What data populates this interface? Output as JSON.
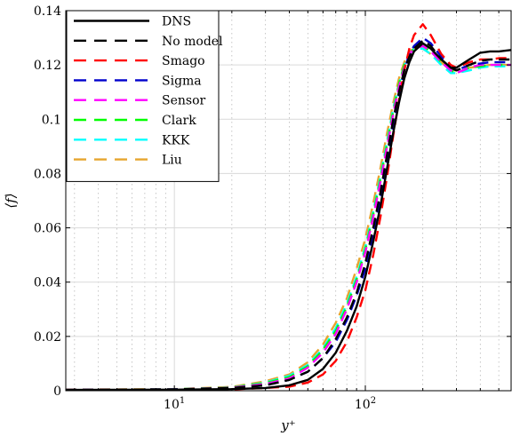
{
  "chart_data": {
    "type": "line",
    "title": "",
    "xlabel": "y⁺",
    "ylabel": "⟨f⟩",
    "xscale": "log",
    "xlim": [
      2.7,
      580
    ],
    "ylim": [
      0,
      0.14
    ],
    "grid": "log-major-and-minor",
    "legend_position": "top-left",
    "x_tick_labels": [
      {
        "value": 10,
        "base": "10",
        "exp": "1"
      },
      {
        "value": 100,
        "base": "10",
        "exp": "2"
      }
    ],
    "y_ticks": [
      0,
      0.02,
      0.04,
      0.06,
      0.08,
      0.1,
      0.12,
      0.14
    ],
    "y_tick_labels": [
      "0",
      "0.02",
      "0.04",
      "0.06",
      "0.08",
      "0.1",
      "0.12",
      "0.14"
    ],
    "series": [
      {
        "name": "DNS",
        "color": "#000000",
        "dash": "solid",
        "x": [
          2.7,
          10,
          20,
          30,
          40,
          50,
          60,
          70,
          80,
          90,
          100,
          110,
          120,
          130,
          140,
          150,
          160,
          170,
          180,
          200,
          220,
          250,
          280,
          300,
          350,
          400,
          450,
          500,
          580
        ],
        "y": [
          0.0003,
          0.0004,
          0.0006,
          0.001,
          0.002,
          0.004,
          0.008,
          0.014,
          0.022,
          0.031,
          0.042,
          0.055,
          0.068,
          0.082,
          0.095,
          0.106,
          0.115,
          0.121,
          0.125,
          0.128,
          0.126,
          0.122,
          0.119,
          0.119,
          0.122,
          0.1245,
          0.125,
          0.125,
          0.1255
        ]
      },
      {
        "name": "No model",
        "color": "#000000",
        "dash": "dashed",
        "x": [
          2.7,
          10,
          20,
          30,
          40,
          50,
          60,
          70,
          80,
          90,
          100,
          110,
          120,
          130,
          140,
          150,
          160,
          170,
          180,
          200,
          220,
          250,
          280,
          300,
          350,
          400,
          450,
          500,
          580
        ],
        "y": [
          0.0003,
          0.0005,
          0.001,
          0.002,
          0.004,
          0.007,
          0.012,
          0.019,
          0.027,
          0.036,
          0.047,
          0.06,
          0.073,
          0.087,
          0.1,
          0.11,
          0.118,
          0.123,
          0.126,
          0.129,
          0.127,
          0.122,
          0.119,
          0.118,
          0.12,
          0.1215,
          0.122,
          0.122,
          0.122
        ]
      },
      {
        "name": "Smago",
        "color": "#ff0000",
        "dash": "dashed",
        "x": [
          2.7,
          10,
          20,
          30,
          40,
          50,
          60,
          70,
          80,
          90,
          100,
          110,
          120,
          130,
          140,
          150,
          160,
          170,
          180,
          200,
          220,
          250,
          280,
          300,
          350,
          400,
          450,
          500,
          580
        ],
        "y": [
          0.0003,
          0.0004,
          0.0005,
          0.001,
          0.0015,
          0.003,
          0.006,
          0.011,
          0.018,
          0.027,
          0.037,
          0.05,
          0.064,
          0.079,
          0.094,
          0.107,
          0.118,
          0.126,
          0.131,
          0.135,
          0.131,
          0.124,
          0.12,
          0.119,
          0.121,
          0.122,
          0.122,
          0.1225,
          0.1225
        ]
      },
      {
        "name": "Sigma",
        "color": "#0000cc",
        "dash": "dashed",
        "x": [
          2.7,
          10,
          20,
          30,
          40,
          50,
          60,
          70,
          80,
          90,
          100,
          110,
          120,
          130,
          140,
          150,
          160,
          170,
          180,
          200,
          220,
          250,
          280,
          300,
          350,
          400,
          450,
          500,
          580
        ],
        "y": [
          0.0003,
          0.0005,
          0.0009,
          0.002,
          0.004,
          0.007,
          0.012,
          0.018,
          0.026,
          0.035,
          0.045,
          0.058,
          0.071,
          0.085,
          0.098,
          0.109,
          0.118,
          0.124,
          0.127,
          0.13,
          0.128,
          0.123,
          0.119,
          0.118,
          0.12,
          0.1205,
          0.121,
          0.121,
          0.121
        ]
      },
      {
        "name": "Sensor",
        "color": "#ff00ff",
        "dash": "dashed",
        "x": [
          2.7,
          10,
          20,
          30,
          40,
          50,
          60,
          70,
          80,
          90,
          100,
          110,
          120,
          130,
          140,
          150,
          160,
          170,
          180,
          200,
          220,
          250,
          280,
          300,
          350,
          400,
          450,
          500,
          580
        ],
        "y": [
          0.0003,
          0.0005,
          0.0011,
          0.0025,
          0.0045,
          0.0085,
          0.014,
          0.021,
          0.03,
          0.04,
          0.051,
          0.064,
          0.077,
          0.09,
          0.102,
          0.112,
          0.119,
          0.124,
          0.126,
          0.127,
          0.125,
          0.121,
          0.118,
          0.117,
          0.119,
          0.12,
          0.12,
          0.12,
          0.12
        ]
      },
      {
        "name": "Clark",
        "color": "#00ff00",
        "dash": "dashed",
        "x": [
          2.7,
          10,
          20,
          30,
          40,
          50,
          60,
          70,
          80,
          90,
          100,
          110,
          120,
          130,
          140,
          150,
          160,
          170,
          180,
          200,
          220,
          250,
          280,
          300,
          350,
          400,
          450,
          500,
          580
        ],
        "y": [
          0.0003,
          0.0005,
          0.0012,
          0.0028,
          0.005,
          0.009,
          0.015,
          0.022,
          0.031,
          0.041,
          0.052,
          0.065,
          0.078,
          0.091,
          0.103,
          0.113,
          0.12,
          0.124,
          0.126,
          0.127,
          0.125,
          0.121,
          0.118,
          0.117,
          0.119,
          0.1195,
          0.12,
          0.12,
          0.12
        ]
      },
      {
        "name": "KKK",
        "color": "#00ffff",
        "dash": "dashed",
        "x": [
          2.7,
          10,
          20,
          30,
          40,
          50,
          60,
          70,
          80,
          90,
          100,
          110,
          120,
          130,
          140,
          150,
          160,
          170,
          180,
          200,
          220,
          250,
          280,
          300,
          350,
          400,
          450,
          500,
          580
        ],
        "y": [
          0.0003,
          0.0005,
          0.0012,
          0.003,
          0.0055,
          0.0095,
          0.0155,
          0.023,
          0.032,
          0.042,
          0.053,
          0.066,
          0.079,
          0.092,
          0.104,
          0.113,
          0.12,
          0.124,
          0.126,
          0.126,
          0.124,
          0.12,
          0.117,
          0.117,
          0.118,
          0.119,
          0.1195,
          0.1195,
          0.1195
        ]
      },
      {
        "name": "Liu",
        "color": "#e6a52e",
        "dash": "dashed",
        "x": [
          2.7,
          10,
          20,
          30,
          40,
          50,
          60,
          70,
          80,
          90,
          100,
          110,
          120,
          130,
          140,
          150,
          160,
          170,
          180,
          200,
          220,
          250,
          280,
          300,
          350,
          400,
          450,
          500,
          580
        ],
        "y": [
          0.0004,
          0.0006,
          0.0014,
          0.0035,
          0.006,
          0.0105,
          0.017,
          0.025,
          0.034,
          0.045,
          0.056,
          0.069,
          0.082,
          0.095,
          0.106,
          0.115,
          0.121,
          0.125,
          0.126,
          0.126,
          0.124,
          0.121,
          0.118,
          0.118,
          0.119,
          0.1195,
          0.12,
          0.12,
          0.12
        ]
      }
    ]
  }
}
